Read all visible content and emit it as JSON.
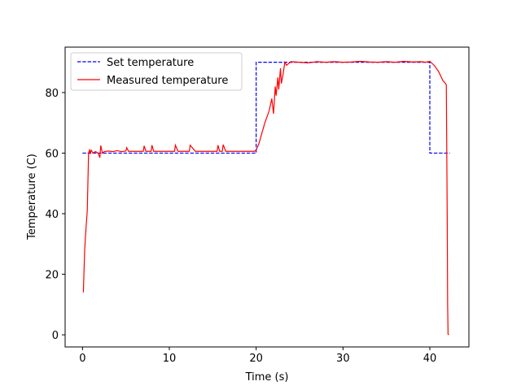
{
  "chart_data": {
    "type": "line",
    "title": "",
    "xlabel": "Time (s)",
    "ylabel": "Temperature (C)",
    "xlim": [
      -2,
      44.5
    ],
    "ylim": [
      -4,
      95
    ],
    "xticks": [
      0,
      10,
      20,
      30,
      40
    ],
    "yticks": [
      0,
      20,
      40,
      60,
      80
    ],
    "grid": false,
    "legend_position": "top-left",
    "series": [
      {
        "name": "Set temperature",
        "color": "#0000ff",
        "style": "dashed",
        "x": [
          0,
          20,
          20,
          40,
          40,
          42.3
        ],
        "y": [
          60,
          60,
          90,
          90,
          60,
          60
        ]
      },
      {
        "name": "Measured temperature",
        "color": "#ff0000",
        "style": "solid",
        "x": [
          0.1,
          0.25,
          0.4,
          0.55,
          0.7,
          0.8,
          0.9,
          1.0,
          1.2,
          1.5,
          1.8,
          2.0,
          2.1,
          2.3,
          2.5,
          3.0,
          3.5,
          4.0,
          4.5,
          5.0,
          5.1,
          5.3,
          6.0,
          7.0,
          7.1,
          7.3,
          7.9,
          8.0,
          8.2,
          9.0,
          10.0,
          10.6,
          10.7,
          11.0,
          12.0,
          12.3,
          12.4,
          13.0,
          14.0,
          15.0,
          15.5,
          15.6,
          15.8,
          16.1,
          16.2,
          16.5,
          17.0,
          18.0,
          19.0,
          19.8,
          20.0,
          20.3,
          20.6,
          21.0,
          21.5,
          21.8,
          22.0,
          22.2,
          22.3,
          22.5,
          22.6,
          22.8,
          22.9,
          23.1,
          23.3,
          23.5,
          24.0,
          25.0,
          26.0,
          27.0,
          28.0,
          29.0,
          30.0,
          31.0,
          32.0,
          33.0,
          34.0,
          35.0,
          36.0,
          37.0,
          38.0,
          39.0,
          39.5,
          40.0,
          40.5,
          41.0,
          41.5,
          41.8,
          41.9,
          42.0,
          42.05,
          42.1,
          42.2
        ],
        "y": [
          14,
          28,
          35,
          41,
          60,
          61,
          60,
          61,
          60,
          60.5,
          60,
          58.5,
          62.5,
          60,
          60.5,
          60.7,
          60.5,
          60.8,
          60.5,
          60.7,
          61.8,
          60.6,
          60.6,
          60.6,
          62.4,
          60.6,
          60.6,
          62.6,
          60.6,
          60.6,
          60.6,
          60.6,
          62.6,
          60.6,
          60.6,
          60.6,
          62.6,
          60.6,
          60.6,
          60.6,
          60.6,
          62.6,
          60.6,
          60.6,
          62.8,
          60.6,
          60.6,
          60.6,
          60.6,
          60.6,
          61,
          63,
          66,
          70,
          74,
          78,
          73,
          82,
          79,
          85,
          81,
          88,
          83,
          86,
          90,
          89,
          90.2,
          90,
          89.8,
          90.2,
          90,
          90.2,
          90,
          90.1,
          90.3,
          90.1,
          90,
          90.2,
          90,
          90.3,
          90.1,
          90.2,
          90,
          90.3,
          89,
          87,
          84,
          83,
          82.5,
          40,
          10,
          0.2,
          0
        ]
      }
    ]
  }
}
